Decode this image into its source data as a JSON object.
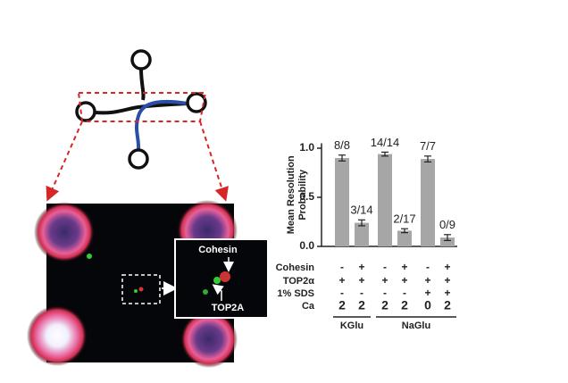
{
  "chart_data": {
    "type": "bar",
    "ylabel": [
      "Mean Resolution",
      "Probability"
    ],
    "values": [
      0.9,
      0.24,
      0.94,
      0.16,
      0.89,
      0.09
    ],
    "errors": [
      0.03,
      0.03,
      0.02,
      0.02,
      0.03,
      0.03
    ],
    "counts": [
      "8/8",
      "3/14",
      "14/14",
      "2/17",
      "7/7",
      "0/9"
    ],
    "color": "#a6a6a6",
    "ylim": [
      0,
      1.05
    ],
    "yticks": [
      {
        "value": 0,
        "label": "0.0"
      },
      0.5,
      {
        "value": 1,
        "label": "1.0"
      }
    ],
    "conditions": [
      {
        "name": "Cohesin",
        "values": [
          "-",
          "+",
          "-",
          "+",
          "-",
          "+"
        ]
      },
      {
        "name": "TOP2α",
        "values": [
          "+",
          "+",
          "+",
          "+",
          "+",
          "+"
        ]
      },
      {
        "name": "1% SDS",
        "values": [
          "-",
          "-",
          "-",
          "-",
          "+",
          "+"
        ]
      },
      {
        "name": "Ca",
        "values": [
          "2",
          "2",
          "2",
          "2",
          "0",
          "2"
        ]
      }
    ],
    "groups": [
      {
        "label": "KGlu",
        "count": 2
      },
      {
        "label": "NaGlu",
        "count": 4
      }
    ]
  },
  "image_annotations": {
    "cohesin": "Cohesin",
    "top2a": "TOP2A"
  }
}
